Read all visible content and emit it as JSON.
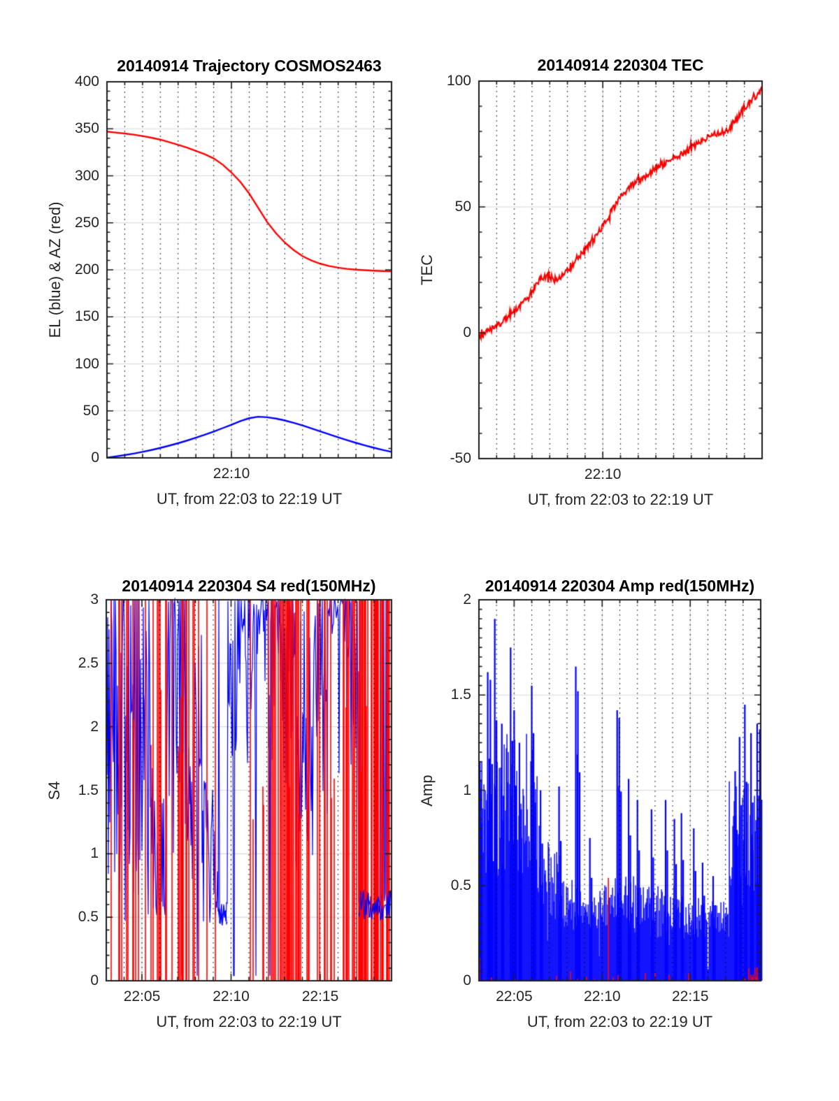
{
  "figure": {
    "background": "#ffffff",
    "colors": {
      "red": "#ff0000",
      "blue": "#0000ff",
      "grid_major": "#d9d9d9",
      "axis": "#1d1d1d",
      "minor_dots": "#000000"
    },
    "noise_seed": 20140914,
    "panel_seeds": [
      11,
      7,
      13,
      5
    ]
  },
  "chart_data": [
    {
      "id": "trajectory",
      "type": "line",
      "title": "20140914 Trajectory COSMOS2463",
      "ylabel": "EL (blue) & AZ (red)",
      "xlabel": "UT, from 22:03 to 22:19 UT",
      "xlim": [
        3,
        19
      ],
      "ylim": [
        0,
        400
      ],
      "yticks": {
        "values": [
          0,
          50,
          100,
          150,
          200,
          250,
          300,
          350,
          400
        ],
        "labels": [
          "0",
          "50",
          "100",
          "150",
          "200",
          "250",
          "300",
          "350",
          "400"
        ]
      },
      "xticks": {
        "minutes": [
          10
        ],
        "labels": [
          "22:10"
        ]
      },
      "grid_y_major": [
        50,
        100,
        150,
        200,
        250,
        300,
        350
      ],
      "grid_x_major": [
        10
      ],
      "minor_y_step": 10,
      "minor_x_step": 1,
      "x_step_min": 0.5,
      "series": [
        {
          "name": "AZ",
          "color": "red",
          "values": [
            347,
            346,
            345,
            343.8,
            342.3,
            340.5,
            338.5,
            335.8,
            333,
            330,
            326.5,
            323,
            318.5,
            312,
            303.5,
            293.5,
            281,
            266,
            251,
            239,
            229,
            221,
            214.5,
            210,
            206.5,
            204,
            202.3,
            201,
            200.2,
            199.6,
            199.1,
            198.7,
            198.4
          ]
        },
        {
          "name": "EL",
          "color": "blue",
          "values": [
            0.3,
            1.6,
            3,
            4.6,
            6.4,
            8.4,
            10.6,
            13,
            15.6,
            18.4,
            21.4,
            24.6,
            28,
            31.6,
            35.2,
            39.2,
            42.2,
            43.8,
            43.2,
            41.8,
            39.8,
            37.3,
            34.5,
            31.4,
            28.2,
            25,
            21.9,
            18.9,
            16,
            13.3,
            10.8,
            8.5,
            6.4
          ]
        }
      ]
    },
    {
      "id": "tec",
      "type": "line",
      "title": "20140914 220304 TEC",
      "ylabel": "TEC",
      "xlabel": "UT, from 22:03 to 22:19 UT",
      "xlim": [
        3,
        19
      ],
      "ylim": [
        -50,
        100
      ],
      "yticks": {
        "values": [
          -50,
          0,
          50,
          100
        ],
        "labels": [
          "-50",
          "0",
          "50",
          "100"
        ]
      },
      "xticks": {
        "minutes": [
          10
        ],
        "labels": [
          "22:10"
        ]
      },
      "grid_y_major": [
        0,
        50
      ],
      "grid_x_major": [
        10
      ],
      "minor_y_step": 10,
      "minor_x_step": 1,
      "x_step_min": 0.5,
      "noise_amplitude": 1.3,
      "series": [
        {
          "name": "TEC",
          "color": "red",
          "values": [
            -1.5,
            0.5,
            2.5,
            5.5,
            8.5,
            12,
            16.5,
            21.5,
            22.5,
            21,
            24.5,
            29,
            33,
            37,
            42.5,
            48.5,
            54,
            57.5,
            60.5,
            62.5,
            65.5,
            67,
            69.5,
            71,
            73.5,
            76,
            78,
            79.5,
            80,
            84,
            89,
            93,
            96.5
          ]
        }
      ]
    },
    {
      "id": "s4",
      "type": "noisy-scintillation",
      "title": "20140914 220304 S4 red(150MHz)",
      "ylabel": "S4",
      "xlabel": "UT, from 22:03 to 22:19 UT",
      "xlim": [
        3,
        19
      ],
      "ylim": [
        0,
        3
      ],
      "yticks": {
        "values": [
          0,
          0.5,
          1,
          1.5,
          2,
          2.5,
          3
        ],
        "labels": [
          "0",
          "0.5",
          "1",
          "1.5",
          "2",
          "2.5",
          "3"
        ]
      },
      "xticks": {
        "minutes": [
          5,
          10,
          15
        ],
        "labels": [
          "22:05",
          "22:10",
          "22:15"
        ]
      },
      "grid_y_major": [
        0.5,
        1,
        1.5,
        2,
        2.5
      ],
      "grid_x_major": [
        5,
        10,
        15
      ],
      "minor_y_step": 0.1,
      "minor_x_step": 1,
      "blue_segments": [
        {
          "t0": 3.0,
          "t1": 5.6,
          "lo": 0.45,
          "hi": 3.0,
          "mode": "dense",
          "drop_p": 0.0,
          "spike_p": 0.0
        },
        {
          "t0": 5.6,
          "t1": 6.4,
          "lo": 0.45,
          "hi": 1.5,
          "mode": "uni",
          "drop_p": 0.0,
          "spike_p": 0.08
        },
        {
          "t0": 6.4,
          "t1": 7.4,
          "lo": 1.0,
          "hi": 3.0,
          "mode": "top",
          "drop_p": 0.05,
          "spike_p": 0.0
        },
        {
          "t0": 7.4,
          "t1": 8.4,
          "lo": 0.75,
          "hi": 2.8,
          "mode": "uni",
          "drop_p": 0.02,
          "spike_p": 0.05
        },
        {
          "t0": 8.4,
          "t1": 9.25,
          "lo": 0.45,
          "hi": 1.6,
          "mode": "uni",
          "drop_p": 0.0,
          "spike_p": 0.04
        },
        {
          "t0": 9.25,
          "t1": 9.8,
          "lo": 0.43,
          "hi": 0.62,
          "mode": "quiet",
          "drop_p": 0.0,
          "spike_p": 0.02,
          "redraw": true
        },
        {
          "t0": 9.8,
          "t1": 11.7,
          "lo": 1.7,
          "hi": 3.0,
          "mode": "top",
          "drop_p": 0.04,
          "spike_p": 0.0
        },
        {
          "t0": 11.7,
          "t1": 12.75,
          "lo": 0.85,
          "hi": 3.0,
          "mode": "top",
          "drop_p": 0.03,
          "spike_p": 0.0
        },
        {
          "t0": 12.75,
          "t1": 13.6,
          "lo": 1.1,
          "hi": 3.0,
          "mode": "top",
          "drop_p": 0.02,
          "spike_p": 0.0
        },
        {
          "t0": 13.6,
          "t1": 14.7,
          "lo": 0.8,
          "hi": 3.0,
          "mode": "uni",
          "drop_p": 0.03,
          "spike_p": 0.0
        },
        {
          "t0": 14.7,
          "t1": 16.15,
          "lo": 1.2,
          "hi": 3.0,
          "mode": "top",
          "drop_p": 0.03,
          "spike_p": 0.0
        },
        {
          "t0": 16.15,
          "t1": 17.15,
          "lo": 1.6,
          "hi": 3.0,
          "mode": "top",
          "drop_p": 0.03,
          "spike_p": 0.0
        },
        {
          "t0": 17.15,
          "t1": 19.0,
          "lo": 0.48,
          "hi": 0.72,
          "mode": "quiet",
          "drop_p": 0.0,
          "spike_p": 0.12,
          "redraw": true
        }
      ],
      "red_segments": [
        {
          "t0": 3.0,
          "t1": 5.6,
          "p": 0.14
        },
        {
          "t0": 5.6,
          "t1": 6.4,
          "p": 0.28
        },
        {
          "t0": 6.4,
          "t1": 6.85,
          "p": 0.35
        },
        {
          "t0": 6.85,
          "t1": 7.35,
          "p": 0.75
        },
        {
          "t0": 7.35,
          "t1": 8.4,
          "p": 0.22
        },
        {
          "t0": 8.4,
          "t1": 9.8,
          "p": 0.18
        },
        {
          "t0": 9.8,
          "t1": 10.6,
          "p": 0.1
        },
        {
          "t0": 10.6,
          "t1": 11.7,
          "p": 0.1
        },
        {
          "t0": 11.7,
          "t1": 12.7,
          "p": 0.18
        },
        {
          "t0": 12.7,
          "t1": 13.45,
          "p": 0.65
        },
        {
          "t0": 13.45,
          "t1": 14.7,
          "p": 0.28
        },
        {
          "t0": 14.7,
          "t1": 16.1,
          "p": 0.22
        },
        {
          "t0": 16.1,
          "t1": 16.6,
          "p": 0.55
        },
        {
          "t0": 16.6,
          "t1": 17.15,
          "p": 0.3
        },
        {
          "t0": 17.15,
          "t1": 17.95,
          "p": 0.7
        },
        {
          "t0": 17.95,
          "t1": 18.35,
          "p": 0.35
        },
        {
          "t0": 18.35,
          "t1": 18.95,
          "p": 0.6
        },
        {
          "t0": 18.95,
          "t1": 19.0,
          "p": 0.2
        }
      ]
    },
    {
      "id": "amp",
      "type": "noisy-amplitude",
      "title": "20140914 220304 Amp red(150MHz)",
      "ylabel": "Amp",
      "xlabel": "UT, from 22:03 to 22:19 UT",
      "xlim": [
        3,
        19
      ],
      "ylim": [
        0,
        2
      ],
      "yticks": {
        "values": [
          0,
          0.5,
          1,
          1.5,
          2
        ],
        "labels": [
          "0",
          "0.5",
          "1",
          "1.5",
          "2"
        ]
      },
      "xticks": {
        "minutes": [
          5,
          10,
          15
        ],
        "labels": [
          "22:05",
          "22:10",
          "22:15"
        ]
      },
      "grid_y_major": [
        0.5,
        1,
        1.5
      ],
      "grid_x_major": [
        5,
        10,
        15
      ],
      "minor_y_step": 0.05,
      "minor_x_step": 1,
      "blue_segments": [
        {
          "t0": 3.0,
          "t1": 6.3,
          "lo": 0.55,
          "hi": 1.3
        },
        {
          "t0": 6.3,
          "t1": 7.0,
          "lo": 0.4,
          "hi": 0.85
        },
        {
          "t0": 7.0,
          "t1": 7.7,
          "lo": 0.3,
          "hi": 0.7
        },
        {
          "t0": 7.7,
          "t1": 9.7,
          "lo": 0.25,
          "hi": 0.55
        },
        {
          "t0": 9.7,
          "t1": 10.7,
          "lo": 0.25,
          "hi": 0.5
        },
        {
          "t0": 10.7,
          "t1": 12.2,
          "lo": 0.25,
          "hi": 0.55
        },
        {
          "t0": 12.2,
          "t1": 14.3,
          "lo": 0.22,
          "hi": 0.5
        },
        {
          "t0": 14.3,
          "t1": 16.0,
          "lo": 0.22,
          "hi": 0.45
        },
        {
          "t0": 16.0,
          "t1": 17.2,
          "lo": 0.22,
          "hi": 0.42
        },
        {
          "t0": 17.2,
          "t1": 19.0,
          "lo": 0.45,
          "hi": 1.05
        }
      ],
      "blue_peaks": [
        [
          3.05,
          1.15
        ],
        [
          3.5,
          1.62
        ],
        [
          3.65,
          1.58
        ],
        [
          3.9,
          1.9
        ],
        [
          4.3,
          1.35
        ],
        [
          4.8,
          1.75
        ],
        [
          5.0,
          1.42
        ],
        [
          5.3,
          1.25
        ],
        [
          6.0,
          1.55
        ],
        [
          6.1,
          1.3
        ],
        [
          6.5,
          1.0
        ],
        [
          7.55,
          1.02
        ],
        [
          8.5,
          1.65
        ],
        [
          8.62,
          1.52
        ],
        [
          9.3,
          0.75
        ],
        [
          10.85,
          1.42
        ],
        [
          10.97,
          1.38
        ],
        [
          11.5,
          1.06
        ],
        [
          12.0,
          0.95
        ],
        [
          12.8,
          0.9
        ],
        [
          13.6,
          0.95
        ],
        [
          14.1,
          0.85
        ],
        [
          14.5,
          0.88
        ],
        [
          15.2,
          0.8
        ],
        [
          15.7,
          0.62
        ],
        [
          16.3,
          0.55
        ],
        [
          17.55,
          1.1
        ],
        [
          17.8,
          1.28
        ],
        [
          18.1,
          1.45
        ],
        [
          18.45,
          1.3
        ],
        [
          18.8,
          1.35
        ],
        [
          18.95,
          1.32
        ]
      ],
      "red_spikes": [
        [
          3.03,
          0.12
        ],
        [
          8.2,
          0.05
        ],
        [
          10.35,
          0.54
        ],
        [
          13.0,
          0.04
        ]
      ],
      "red_band": {
        "t0": 17.95,
        "t1": 19.0,
        "p": 0.55,
        "max": 0.1
      }
    }
  ]
}
